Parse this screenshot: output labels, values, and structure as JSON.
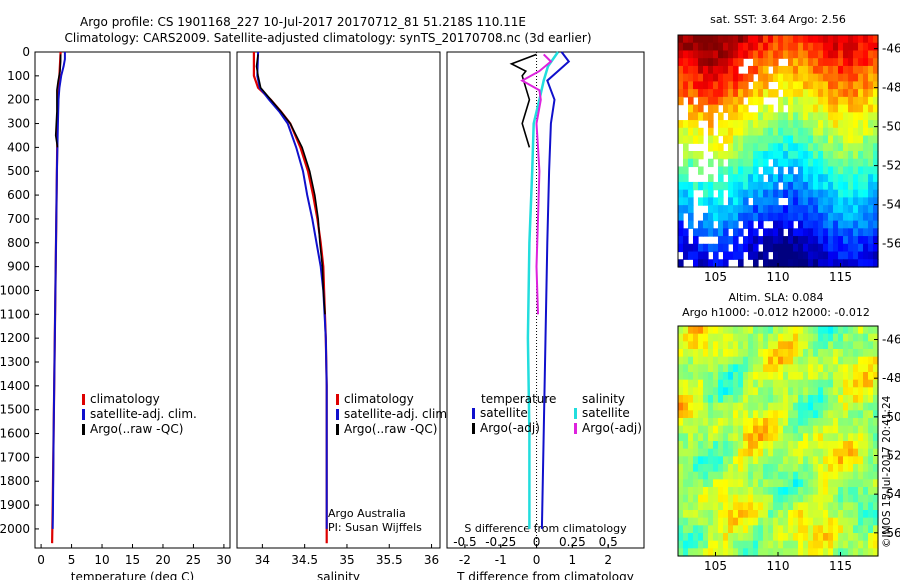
{
  "title": {
    "line1": "Argo profile: CS 1901168_227 10-Jul-2017 20170712_81 51.218S 110.11E",
    "line2": "Climatology: CARS2009. Satellite-adjusted climatology: synTS_20170708.nc (3d earlier)"
  },
  "credit": {
    "line1": "Argo Australia",
    "line2": "PI: Susan Wijffels",
    "imos": "©IMOS 15-Jul-2017 20:41:24"
  },
  "colors": {
    "climatology": "#dd0000",
    "satellite": "#1010cc",
    "argo": "#000000",
    "s_satellite": "#22dddd",
    "s_argo": "#dd22dd"
  },
  "chart_data": [
    {
      "type": "line",
      "name": "temperature-profile",
      "xlabel": "temperature (deg C)",
      "ylabel": "",
      "xlim": [
        -1,
        31
      ],
      "ylim": [
        2080,
        0
      ],
      "xticks": [
        "0",
        "5",
        "10",
        "15",
        "20",
        "25",
        "30"
      ],
      "yticks": [
        "0",
        "100",
        "200",
        "300",
        "400",
        "500",
        "600",
        "700",
        "800",
        "900",
        "1000",
        "1100",
        "1200",
        "1300",
        "1400",
        "1500",
        "1600",
        "1700",
        "1800",
        "1900",
        "2000"
      ],
      "legend": [
        "climatology",
        "satellite-adj. clim.",
        "Argo(..raw -QC)"
      ],
      "series": [
        {
          "name": "climatology",
          "depth": [
            0,
            50,
            100,
            150,
            200,
            300,
            500,
            700,
            1000,
            1300,
            1600,
            1900,
            2060
          ],
          "values": [
            3.2,
            3.1,
            3.0,
            2.9,
            2.8,
            2.7,
            2.6,
            2.5,
            2.35,
            2.2,
            2.05,
            1.9,
            1.8
          ]
        },
        {
          "name": "satellite-adj. clim.",
          "depth": [
            0,
            30,
            60,
            100,
            150,
            200,
            300,
            500,
            700,
            1000,
            1300,
            1600,
            1900,
            2000
          ],
          "values": [
            3.9,
            3.9,
            3.7,
            3.3,
            3.0,
            2.85,
            2.75,
            2.6,
            2.5,
            2.35,
            2.2,
            2.05,
            1.95,
            1.9
          ]
        },
        {
          "name": "Argo(..raw -QC)",
          "depth": [
            10,
            40,
            80,
            120,
            160,
            200,
            250,
            300,
            350,
            400
          ],
          "values": [
            3.2,
            3.2,
            3.1,
            2.8,
            2.6,
            2.6,
            2.6,
            2.5,
            2.4,
            2.7
          ]
        }
      ]
    },
    {
      "type": "line",
      "name": "salinity-profile",
      "xlabel": "salinity",
      "xlim": [
        33.7,
        36.1
      ],
      "ylim": [
        2080,
        0
      ],
      "xticks": [
        "34",
        "34.5",
        "35",
        "35.5",
        "36"
      ],
      "legend": [
        "climatology",
        "satellite-adj. clim.",
        "Argo(..raw -QC)"
      ],
      "series": [
        {
          "name": "climatology",
          "depth": [
            0,
            100,
            150,
            200,
            250,
            300,
            400,
            500,
            600,
            700,
            800,
            900,
            1000,
            1200,
            1400,
            1700,
            2060
          ],
          "values": [
            33.9,
            33.9,
            33.95,
            34.1,
            34.22,
            34.33,
            34.45,
            34.54,
            34.6,
            34.65,
            34.69,
            34.72,
            34.73,
            34.75,
            34.76,
            34.76,
            34.76
          ]
        },
        {
          "name": "satellite-adj. clim.",
          "depth": [
            0,
            100,
            150,
            200,
            250,
            300,
            400,
            500,
            600,
            700,
            800,
            900,
            1000,
            1200,
            1400,
            1700,
            2000
          ],
          "values": [
            33.95,
            33.94,
            33.97,
            34.08,
            34.2,
            34.3,
            34.4,
            34.48,
            34.53,
            34.59,
            34.64,
            34.69,
            34.72,
            34.75,
            34.76,
            34.76,
            34.76
          ]
        },
        {
          "name": "Argo(..raw -QC)",
          "depth": [
            10,
            60,
            100,
            150,
            200,
            250,
            300,
            400,
            500,
            600,
            700,
            800,
            900,
            1000,
            1100
          ],
          "values": [
            33.95,
            33.93,
            33.95,
            33.98,
            34.1,
            34.22,
            34.33,
            34.47,
            34.56,
            34.62,
            34.66,
            34.68,
            34.71,
            34.72,
            34.74
          ]
        }
      ]
    },
    {
      "type": "line",
      "name": "difference-profile",
      "xlabel": "T difference from climatology",
      "xlabel_top": "S difference from climatology",
      "xlim": [
        -2.5,
        3
      ],
      "ylim": [
        2080,
        0
      ],
      "xticks": [
        "-2",
        "-1",
        "0",
        "1",
        "2"
      ],
      "sticks": [
        "-0.5",
        "-0.25",
        "0",
        "0.25",
        "0.5"
      ],
      "legend_t_title": "temperature",
      "legend_s_title": "salinity",
      "legend_t": [
        "satellite",
        "Argo(-adj)"
      ],
      "legend_s": [
        "satellite",
        "Argo(-adj)"
      ],
      "series": [
        {
          "name": "T satellite",
          "depth": [
            0,
            40,
            80,
            120,
            160,
            200,
            300,
            500,
            800,
            1200,
            1600,
            2000
          ],
          "values": [
            0.7,
            0.9,
            0.6,
            0.3,
            0.4,
            0.5,
            0.4,
            0.35,
            0.3,
            0.25,
            0.2,
            0.15
          ]
        },
        {
          "name": "T Argo(-adj)",
          "depth": [
            10,
            50,
            80,
            100,
            150,
            200,
            250,
            300,
            350,
            400
          ],
          "values": [
            0.0,
            -0.7,
            -0.3,
            -0.4,
            -0.3,
            -0.2,
            -0.3,
            -0.4,
            -0.3,
            -0.2
          ]
        },
        {
          "name": "S satellite",
          "depth": [
            0,
            60,
            120,
            200,
            300,
            500,
            800,
            1200,
            1600,
            2000
          ],
          "values": [
            0.15,
            0.08,
            0.05,
            0.02,
            -0.02,
            -0.03,
            -0.05,
            -0.06,
            -0.05,
            -0.05
          ]
        },
        {
          "name": "S Argo(-adj)",
          "depth": [
            10,
            40,
            80,
            120,
            160,
            200,
            300,
            400,
            500,
            700,
            900,
            1100
          ],
          "values": [
            0.05,
            0.1,
            0.02,
            -0.1,
            0.02,
            0.03,
            0.0,
            0.01,
            0.02,
            0.01,
            0.0,
            0.01
          ]
        }
      ]
    },
    {
      "type": "heatmap",
      "name": "sst-map",
      "title": "sat. SST: 3.64 Argo: 2.56",
      "xlim": [
        102,
        118
      ],
      "ylim": [
        -57.2,
        -45.3
      ],
      "xticks": [
        "105",
        "110",
        "115"
      ],
      "yticks": [
        "-46",
        "-48",
        "-50",
        "-52",
        "-54",
        "-56"
      ]
    },
    {
      "type": "heatmap",
      "name": "sla-map",
      "title_line1": "Altim. SLA: 0.084",
      "title_line2": "Argo h1000: -0.012 h2000: -0.012",
      "xlim": [
        102,
        118
      ],
      "ylim": [
        -57.2,
        -45.3
      ],
      "xticks": [
        "105",
        "110",
        "115"
      ],
      "yticks": [
        "-46",
        "-48",
        "-50",
        "-52",
        "-54",
        "-56"
      ]
    }
  ]
}
